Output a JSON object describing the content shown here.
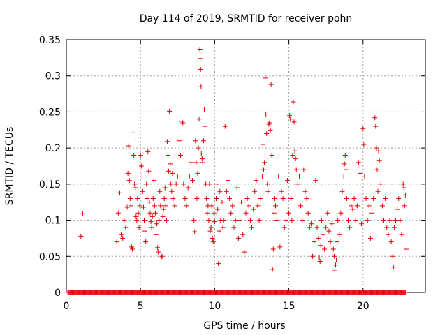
{
  "chart_data": {
    "type": "scatter",
    "title": "Day 114 of 2019, SRMTID for receiver pohn",
    "xlabel": "GPS time / hours",
    "ylabel": "SRMTID / TECUs",
    "xlim": [
      0,
      24.2
    ],
    "ylim": [
      0,
      0.35
    ],
    "xticks": [
      0,
      5,
      10,
      15,
      20
    ],
    "xtick_labels": [
      "0",
      "5",
      "10",
      "15",
      "20"
    ],
    "yticks": [
      0,
      0.05,
      0.1,
      0.15,
      0.2,
      0.25,
      0.3,
      0.35
    ],
    "ytick_labels": [
      "0",
      "0.05",
      "0.1",
      "0.15",
      "0.2",
      "0.25",
      "0.3",
      "0.35"
    ],
    "grid": true,
    "marker": "plus",
    "color": "#e00000",
    "series": [
      {
        "name": "SRMTID",
        "points": [
          [
            0.98,
            0.078
          ],
          [
            1.1,
            0.109
          ],
          [
            3.4,
            0.07
          ],
          [
            3.5,
            0.11
          ],
          [
            3.6,
            0.138
          ],
          [
            3.7,
            0.08
          ],
          [
            3.8,
            0.075
          ],
          [
            3.9,
            0.1
          ],
          [
            4.0,
            0.09
          ],
          [
            4.1,
            0.118
          ],
          [
            4.15,
            0.165
          ],
          [
            4.2,
            0.203
          ],
          [
            4.25,
            0.155
          ],
          [
            4.3,
            0.13
          ],
          [
            4.35,
            0.12
          ],
          [
            4.4,
            0.063
          ],
          [
            4.45,
            0.06
          ],
          [
            4.5,
            0.221
          ],
          [
            4.55,
            0.19
          ],
          [
            4.6,
            0.15
          ],
          [
            4.65,
            0.145
          ],
          [
            4.7,
            0.105
          ],
          [
            4.75,
            0.1
          ],
          [
            4.8,
            0.13
          ],
          [
            4.85,
            0.11
          ],
          [
            4.9,
            0.09
          ],
          [
            4.95,
            0.12
          ],
          [
            5.0,
            0.19
          ],
          [
            5.05,
            0.175
          ],
          [
            5.1,
            0.16
          ],
          [
            5.15,
            0.14
          ],
          [
            5.2,
            0.118
          ],
          [
            5.25,
            0.1
          ],
          [
            5.3,
            0.085
          ],
          [
            5.35,
            0.07
          ],
          [
            5.4,
            0.15
          ],
          [
            5.45,
            0.13
          ],
          [
            5.5,
            0.195
          ],
          [
            5.55,
            0.168
          ],
          [
            5.6,
            0.125
          ],
          [
            5.65,
            0.11
          ],
          [
            5.7,
            0.098
          ],
          [
            5.75,
            0.09
          ],
          [
            5.8,
            0.105
          ],
          [
            5.85,
            0.13
          ],
          [
            5.9,
            0.155
          ],
          [
            5.95,
            0.12
          ],
          [
            6.0,
            0.11
          ],
          [
            6.05,
            0.08
          ],
          [
            6.1,
            0.095
          ],
          [
            6.15,
            0.062
          ],
          [
            6.2,
            0.056
          ],
          [
            6.25,
            0.1
          ],
          [
            6.3,
            0.14
          ],
          [
            6.35,
            0.12
          ],
          [
            6.4,
            0.048
          ],
          [
            6.45,
            0.05
          ],
          [
            6.5,
            0.105
          ],
          [
            6.55,
            0.115
          ],
          [
            6.6,
            0.13
          ],
          [
            6.65,
            0.145
          ],
          [
            6.7,
            0.12
          ],
          [
            6.75,
            0.1
          ],
          [
            6.8,
            0.209
          ],
          [
            6.85,
            0.19
          ],
          [
            6.9,
            0.168
          ],
          [
            6.95,
            0.251
          ],
          [
            7.0,
            0.178
          ],
          [
            7.05,
            0.15
          ],
          [
            7.1,
            0.14
          ],
          [
            7.15,
            0.165
          ],
          [
            7.2,
            0.13
          ],
          [
            7.3,
            0.12
          ],
          [
            7.4,
            0.15
          ],
          [
            7.5,
            0.16
          ],
          [
            7.6,
            0.21
          ],
          [
            7.7,
            0.19
          ],
          [
            7.8,
            0.237
          ],
          [
            7.85,
            0.235
          ],
          [
            7.9,
            0.15
          ],
          [
            8.0,
            0.13
          ],
          [
            8.1,
            0.12
          ],
          [
            8.2,
            0.145
          ],
          [
            8.3,
            0.16
          ],
          [
            8.4,
            0.18
          ],
          [
            8.5,
            0.155
          ],
          [
            8.6,
            0.1
          ],
          [
            8.65,
            0.084
          ],
          [
            8.7,
            0.21
          ],
          [
            8.75,
            0.18
          ],
          [
            8.8,
            0.13
          ],
          [
            8.85,
            0.165
          ],
          [
            8.9,
            0.2
          ],
          [
            8.95,
            0.24
          ],
          [
            9.0,
            0.337
          ],
          [
            9.02,
            0.324
          ],
          [
            9.05,
            0.309
          ],
          [
            9.08,
            0.285
          ],
          [
            9.1,
            0.192
          ],
          [
            9.15,
            0.185
          ],
          [
            9.2,
            0.18
          ],
          [
            9.25,
            0.21
          ],
          [
            9.3,
            0.253
          ],
          [
            9.35,
            0.23
          ],
          [
            9.4,
            0.15
          ],
          [
            9.45,
            0.13
          ],
          [
            9.5,
            0.11
          ],
          [
            9.55,
            0.12
          ],
          [
            9.6,
            0.1
          ],
          [
            9.65,
            0.15
          ],
          [
            9.7,
            0.085
          ],
          [
            9.75,
            0.09
          ],
          [
            9.8,
            0.12
          ],
          [
            9.85,
            0.075
          ],
          [
            9.9,
            0.07
          ],
          [
            9.95,
            0.11
          ],
          [
            10.0,
            0.098
          ],
          [
            10.1,
            0.13
          ],
          [
            10.15,
            0.15
          ],
          [
            10.2,
            0.115
          ],
          [
            10.25,
            0.04
          ],
          [
            10.3,
            0.085
          ],
          [
            10.35,
            0.14
          ],
          [
            10.4,
            0.1
          ],
          [
            10.5,
            0.125
          ],
          [
            10.55,
            0.09
          ],
          [
            10.6,
            0.1
          ],
          [
            10.7,
            0.23
          ],
          [
            10.8,
            0.14
          ],
          [
            10.9,
            0.155
          ],
          [
            11.0,
            0.13
          ],
          [
            11.1,
            0.11
          ],
          [
            11.2,
            0.12
          ],
          [
            11.3,
            0.09
          ],
          [
            11.4,
            0.1
          ],
          [
            11.5,
            0.145
          ],
          [
            11.6,
            0.075
          ],
          [
            11.7,
            0.1
          ],
          [
            11.8,
            0.125
          ],
          [
            11.9,
            0.08
          ],
          [
            12.0,
            0.056
          ],
          [
            12.1,
            0.11
          ],
          [
            12.2,
            0.13
          ],
          [
            12.3,
            0.12
          ],
          [
            12.4,
            0.1
          ],
          [
            12.5,
            0.09
          ],
          [
            12.6,
            0.115
          ],
          [
            12.7,
            0.14
          ],
          [
            12.8,
            0.155
          ],
          [
            12.9,
            0.12
          ],
          [
            13.0,
            0.1
          ],
          [
            13.1,
            0.13
          ],
          [
            13.2,
            0.16
          ],
          [
            13.25,
            0.205
          ],
          [
            13.3,
            0.17
          ],
          [
            13.35,
            0.18
          ],
          [
            13.4,
            0.297
          ],
          [
            13.45,
            0.247
          ],
          [
            13.5,
            0.22
          ],
          [
            13.55,
            0.15
          ],
          [
            13.6,
            0.14
          ],
          [
            13.65,
            0.233
          ],
          [
            13.7,
            0.235
          ],
          [
            13.75,
            0.225
          ],
          [
            13.8,
            0.288
          ],
          [
            13.85,
            0.19
          ],
          [
            13.9,
            0.032
          ],
          [
            13.95,
            0.06
          ],
          [
            14.0,
            0.11
          ],
          [
            14.05,
            0.13
          ],
          [
            14.1,
            0.12
          ],
          [
            14.2,
            0.1
          ],
          [
            14.3,
            0.16
          ],
          [
            14.4,
            0.063
          ],
          [
            14.5,
            0.14
          ],
          [
            14.6,
            0.13
          ],
          [
            14.7,
            0.09
          ],
          [
            14.8,
            0.1
          ],
          [
            14.9,
            0.155
          ],
          [
            15.0,
            0.11
          ],
          [
            15.05,
            0.245
          ],
          [
            15.1,
            0.24
          ],
          [
            15.15,
            0.13
          ],
          [
            15.2,
            0.1
          ],
          [
            15.25,
            0.19
          ],
          [
            15.3,
            0.264
          ],
          [
            15.35,
            0.236
          ],
          [
            15.4,
            0.196
          ],
          [
            15.45,
            0.185
          ],
          [
            15.5,
            0.17
          ],
          [
            15.6,
            0.15
          ],
          [
            15.7,
            0.16
          ],
          [
            15.8,
            0.12
          ],
          [
            15.9,
            0.1
          ],
          [
            16.0,
            0.17
          ],
          [
            16.1,
            0.14
          ],
          [
            16.2,
            0.13
          ],
          [
            16.3,
            0.11
          ],
          [
            16.4,
            0.09
          ],
          [
            16.5,
            0.095
          ],
          [
            16.6,
            0.05
          ],
          [
            16.7,
            0.07
          ],
          [
            16.8,
            0.155
          ],
          [
            16.9,
            0.09
          ],
          [
            17.0,
            0.075
          ],
          [
            17.05,
            0.048
          ],
          [
            17.1,
            0.043
          ],
          [
            17.15,
            0.065
          ],
          [
            17.2,
            0.1
          ],
          [
            17.3,
            0.08
          ],
          [
            17.4,
            0.06
          ],
          [
            17.5,
            0.09
          ],
          [
            17.6,
            0.11
          ],
          [
            17.7,
            0.085
          ],
          [
            17.8,
            0.07
          ],
          [
            17.9,
            0.095
          ],
          [
            18.0,
            0.06
          ],
          [
            18.05,
            0.05
          ],
          [
            18.1,
            0.03
          ],
          [
            18.15,
            0.038
          ],
          [
            18.2,
            0.045
          ],
          [
            18.25,
            0.07
          ],
          [
            18.3,
            0.1
          ],
          [
            18.4,
            0.08
          ],
          [
            18.5,
            0.11
          ],
          [
            18.6,
            0.14
          ],
          [
            18.7,
            0.16
          ],
          [
            18.75,
            0.178
          ],
          [
            18.8,
            0.19
          ],
          [
            18.85,
            0.17
          ],
          [
            18.9,
            0.13
          ],
          [
            19.0,
            0.1
          ],
          [
            19.1,
            0.09
          ],
          [
            19.2,
            0.12
          ],
          [
            19.3,
            0.115
          ],
          [
            19.4,
            0.13
          ],
          [
            19.5,
            0.1
          ],
          [
            19.6,
            0.12
          ],
          [
            19.7,
            0.18
          ],
          [
            19.8,
            0.165
          ],
          [
            19.9,
            0.095
          ],
          [
            20.0,
            0.227
          ],
          [
            20.05,
            0.205
          ],
          [
            20.1,
            0.16
          ],
          [
            20.2,
            0.13
          ],
          [
            20.3,
            0.1
          ],
          [
            20.4,
            0.12
          ],
          [
            20.5,
            0.075
          ],
          [
            20.6,
            0.11
          ],
          [
            20.7,
            0.13
          ],
          [
            20.8,
            0.242
          ],
          [
            20.85,
            0.23
          ],
          [
            20.9,
            0.2
          ],
          [
            20.95,
            0.17
          ],
          [
            21.0,
            0.14
          ],
          [
            21.05,
            0.196
          ],
          [
            21.1,
            0.183
          ],
          [
            21.2,
            0.15
          ],
          [
            21.3,
            0.12
          ],
          [
            21.4,
            0.1
          ],
          [
            21.5,
            0.13
          ],
          [
            21.6,
            0.09
          ],
          [
            21.7,
            0.08
          ],
          [
            21.8,
            0.1
          ],
          [
            21.9,
            0.07
          ],
          [
            22.0,
            0.05
          ],
          [
            22.05,
            0.035
          ],
          [
            22.1,
            0.09
          ],
          [
            22.2,
            0.1
          ],
          [
            22.3,
            0.115
          ],
          [
            22.4,
            0.13
          ],
          [
            22.5,
            0.1
          ],
          [
            22.6,
            0.08
          ],
          [
            22.7,
            0.15
          ],
          [
            22.75,
            0.145
          ],
          [
            22.8,
            0.12
          ],
          [
            22.85,
            0.135
          ],
          [
            22.9,
            0.06
          ]
        ],
        "zero_band": {
          "y": 0,
          "x_from": 0.1,
          "x_to": 22.9
        }
      }
    ]
  }
}
